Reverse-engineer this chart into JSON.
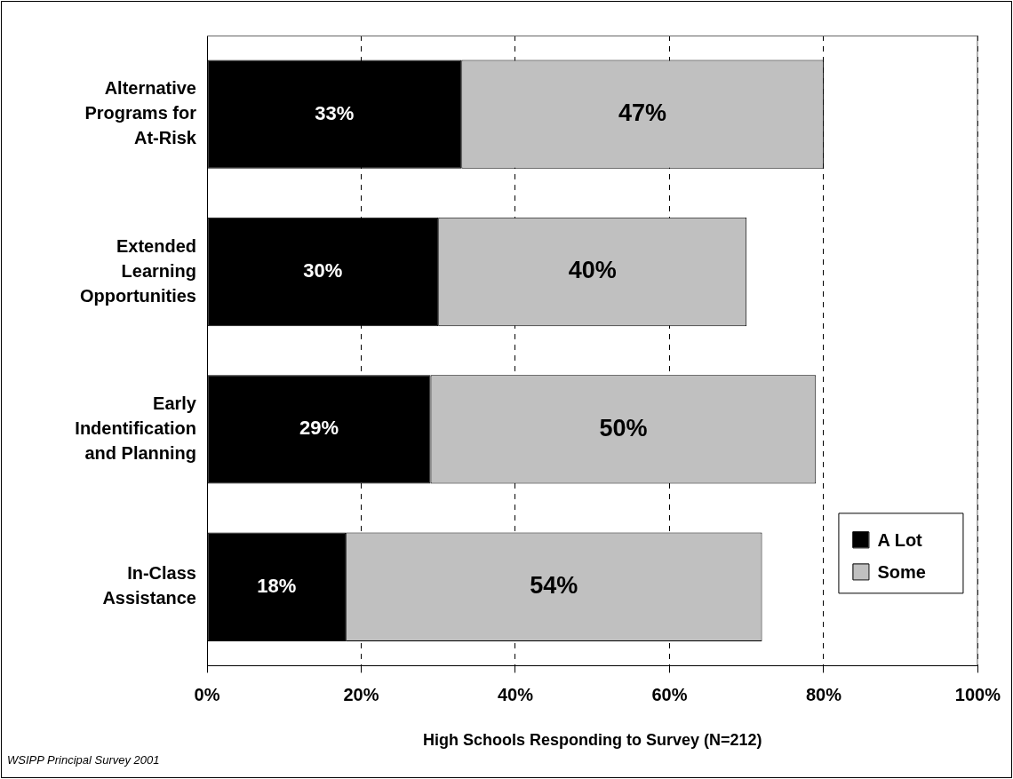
{
  "chart_data": {
    "type": "bar",
    "orientation": "horizontal",
    "stacked": true,
    "categories": [
      "Alternative Programs for At-Risk",
      "Extended Learning Opportunities",
      "Early Indentification and Planning",
      "In-Class Assistance"
    ],
    "series": [
      {
        "name": "A Lot",
        "color": "#000000",
        "values": [
          33,
          30,
          29,
          18
        ],
        "value_labels": [
          "33%",
          "30%",
          "29%",
          "18%"
        ]
      },
      {
        "name": "Some",
        "color": "#c0c0c0",
        "values": [
          47,
          40,
          50,
          54
        ],
        "value_labels": [
          "47%",
          "40%",
          "50%",
          "54%"
        ]
      }
    ],
    "xlabel": "High Schools Responding to Survey (N=212)",
    "xlim": [
      0,
      100
    ],
    "xticks": [
      {
        "value": 0,
        "label": "0%"
      },
      {
        "value": 20,
        "label": "20%"
      },
      {
        "value": 40,
        "label": "40%"
      },
      {
        "value": 60,
        "label": "60%"
      },
      {
        "value": 80,
        "label": "80%"
      },
      {
        "value": 100,
        "label": "100%"
      }
    ],
    "grid": "x",
    "legend": "bottom right",
    "annotations": [
      "WSIPP Principal Survey 2001"
    ]
  }
}
